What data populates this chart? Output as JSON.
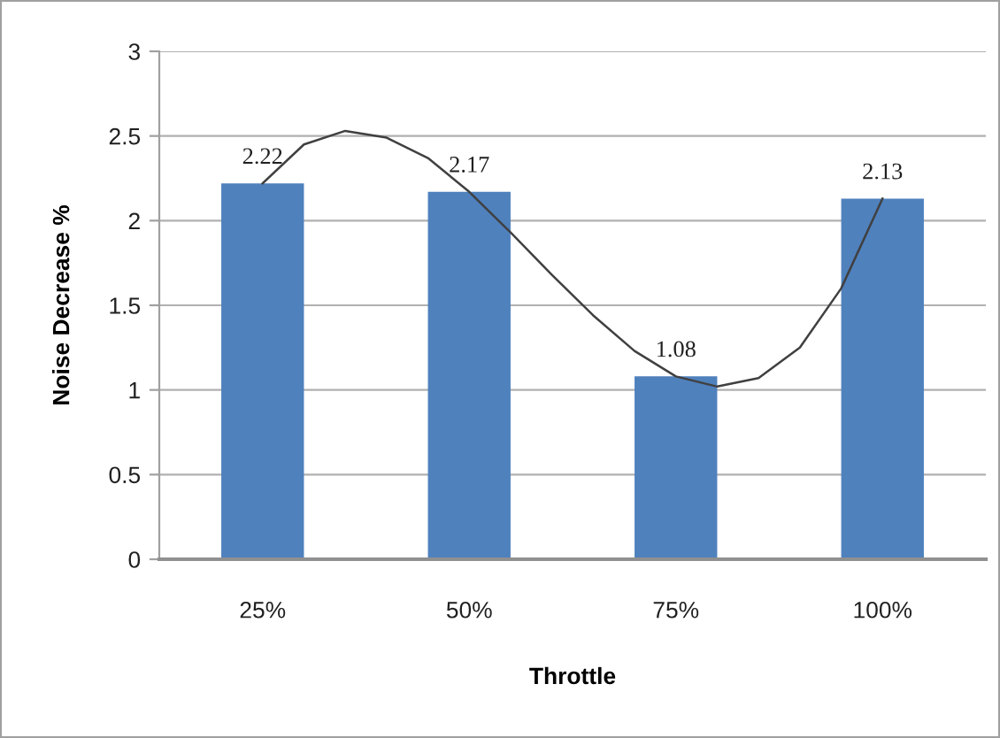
{
  "chart_data": {
    "type": "bar",
    "xlabel": "Throttle",
    "ylabel": "Noise Decrease %",
    "x": [
      25,
      50,
      75,
      100
    ],
    "series": [
      {
        "color": "#4f81bd",
        "values": [
          2.22,
          2.17,
          1.08,
          2.13
        ],
        "value_labels": [
          "2.22",
          "2.17",
          "1.08",
          "2.13"
        ]
      },
      {
        "type": "line",
        "color": "#404040",
        "x": [
          25,
          30,
          35,
          40,
          45,
          50,
          55,
          60,
          65,
          70,
          75,
          80,
          85,
          90,
          95,
          100
        ],
        "values": [
          2.22,
          2.45,
          2.53,
          2.49,
          2.37,
          2.17,
          1.93,
          1.68,
          1.44,
          1.23,
          1.08,
          1.02,
          1.07,
          1.25,
          1.6,
          2.13
        ]
      }
    ],
    "xlim": [
      12.5,
      112.5
    ],
    "xticks": [
      {
        "value": 25,
        "label": "25%"
      },
      {
        "value": 50,
        "label": "50%"
      },
      {
        "value": 75,
        "label": "75%"
      },
      {
        "value": 100,
        "label": "100%"
      }
    ],
    "ylim": [
      0,
      3
    ],
    "yticks": [
      0,
      0.5,
      1,
      1.5,
      2,
      2.5,
      3
    ],
    "grid": "y",
    "legend": false,
    "marker": "none",
    "line_style": "solid"
  }
}
